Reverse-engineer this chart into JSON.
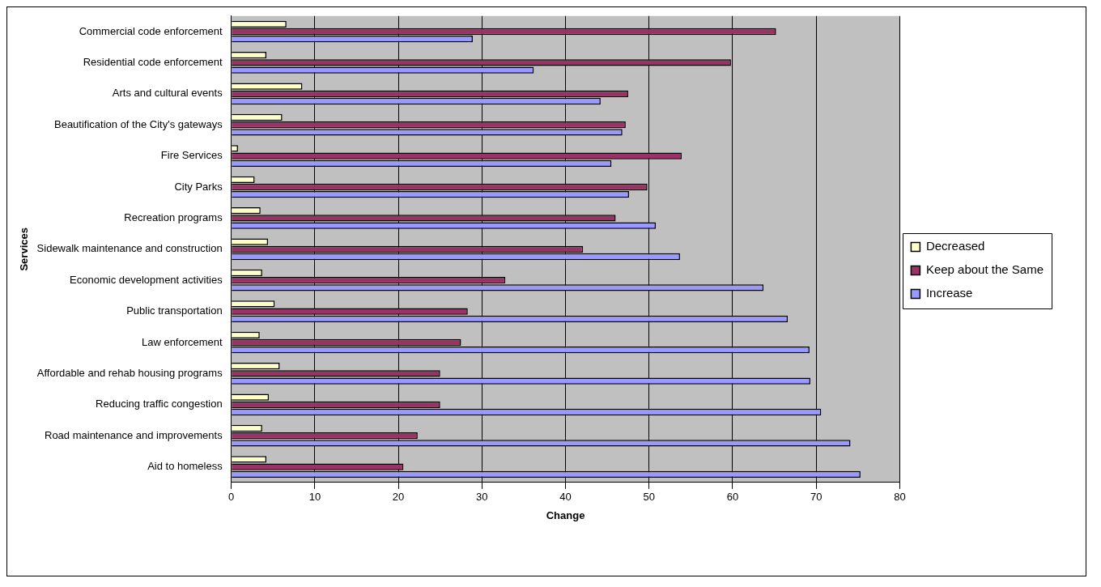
{
  "chart_data": {
    "type": "bar",
    "orientation": "horizontal",
    "xlabel": "Change",
    "ylabel": "Services",
    "categories": [
      "Commercial code enforcement",
      "Residential code enforcement",
      "Arts and cultural events",
      "Beautification of the City's gateways",
      "Fire Services",
      "City Parks",
      "Recreation programs",
      "Sidewalk maintenance and construction",
      "Economic development activities",
      "Public transportation",
      "Law enforcement",
      "Affordable and rehab housing programs",
      "Reducing traffic congestion",
      "Road maintenance and improvements",
      "Aid to homeless"
    ],
    "series": [
      {
        "name": "Decreased",
        "color": "#ffffcc",
        "values": [
          6.6,
          4.2,
          8.5,
          6.1,
          0.8,
          2.8,
          3.5,
          4.4,
          3.7,
          5.2,
          3.4,
          5.8,
          4.5,
          3.7,
          4.2
        ]
      },
      {
        "name": "Keep about the Same",
        "color": "#993366",
        "values": [
          65.2,
          59.8,
          47.5,
          47.2,
          53.9,
          49.8,
          46.0,
          42.1,
          32.8,
          28.3,
          27.5,
          25.0,
          25.0,
          22.3,
          20.6
        ]
      },
      {
        "name": "Increase",
        "color": "#9999ff",
        "values": [
          28.9,
          36.2,
          44.2,
          46.8,
          45.5,
          47.6,
          50.8,
          53.7,
          63.7,
          66.6,
          69.2,
          69.3,
          70.6,
          74.1,
          75.3
        ]
      }
    ],
    "xlim": [
      0,
      80
    ],
    "xticks": [
      0,
      10,
      20,
      30,
      40,
      50,
      60,
      70,
      80
    ],
    "grid": "x",
    "legend": "right"
  }
}
